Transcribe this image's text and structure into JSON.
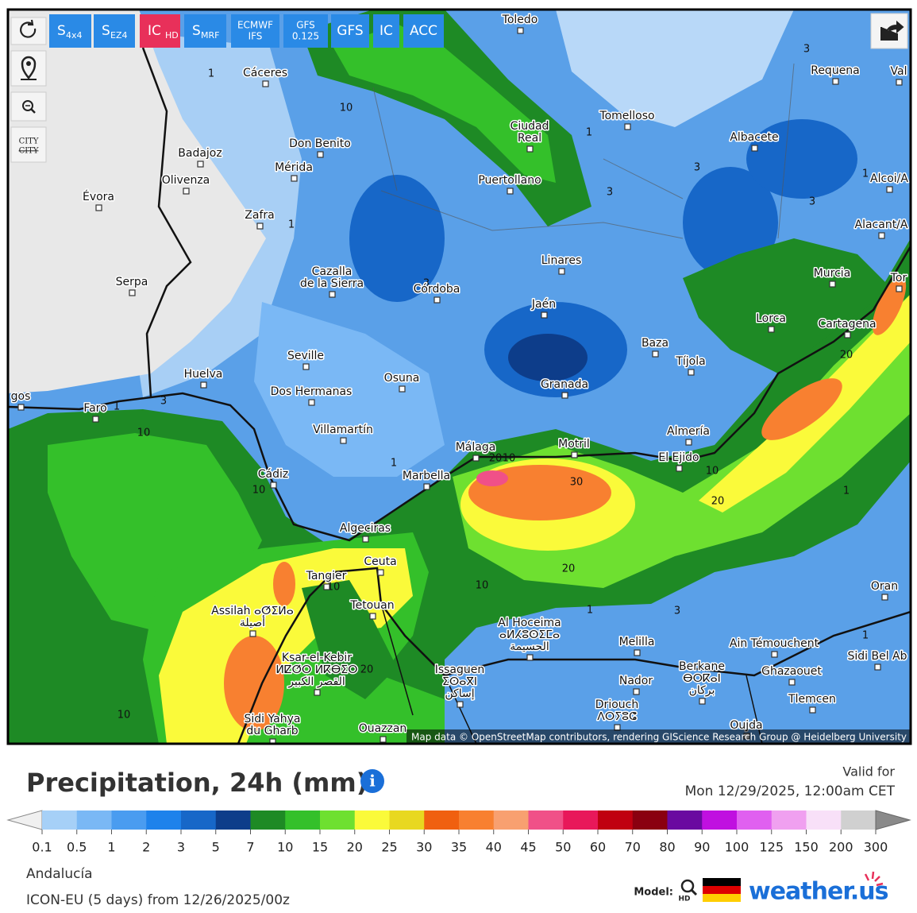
{
  "toolbar": {
    "buttons": [
      {
        "label": "S",
        "sub": "4x4"
      },
      {
        "label": "S",
        "sub": "EZ4"
      },
      {
        "label": "IC",
        "sub": "HD",
        "active": true
      },
      {
        "label": "S",
        "sub": "MRF"
      },
      {
        "label": "ECMWF",
        "line2": "IFS"
      },
      {
        "label": "GFS",
        "line2": "0.125"
      },
      {
        "label": "GFS"
      },
      {
        "label": "IC"
      },
      {
        "label": "ACC"
      }
    ],
    "city_button": "CITY",
    "active_color": "#e8305a",
    "button_color": "#2a8ae6"
  },
  "map": {
    "cities": [
      {
        "lines": [
          "Toledo"
        ]
      },
      {
        "lines": [
          "Cáceres"
        ]
      },
      {
        "lines": [
          "Requena"
        ]
      },
      {
        "lines": [
          "Val"
        ]
      },
      {
        "lines": [
          "Tomelloso"
        ]
      },
      {
        "lines": [
          "Ciudad",
          "Real"
        ]
      },
      {
        "lines": [
          "Albacete"
        ]
      },
      {
        "lines": [
          "Don Benito"
        ]
      },
      {
        "lines": [
          "Mérida"
        ]
      },
      {
        "lines": [
          "Badajoz"
        ]
      },
      {
        "lines": [
          "Olivenza"
        ]
      },
      {
        "lines": [
          "Évora"
        ]
      },
      {
        "lines": [
          "Zafra"
        ]
      },
      {
        "lines": [
          "Puertollano"
        ]
      },
      {
        "lines": [
          "Alcoi/A"
        ]
      },
      {
        "lines": [
          "Alacant/A"
        ]
      },
      {
        "lines": [
          "Serpa"
        ]
      },
      {
        "lines": [
          "Cazalla",
          "de la Sierra"
        ]
      },
      {
        "lines": [
          "Córdoba"
        ]
      },
      {
        "lines": [
          "Linares"
        ]
      },
      {
        "lines": [
          "Murcia"
        ]
      },
      {
        "lines": [
          "Tor"
        ]
      },
      {
        "lines": [
          "Jaén"
        ]
      },
      {
        "lines": [
          "Lorca"
        ]
      },
      {
        "lines": [
          "Cartagena"
        ]
      },
      {
        "lines": [
          "Baza"
        ]
      },
      {
        "lines": [
          "Tíjola"
        ]
      },
      {
        "lines": [
          "Seville"
        ]
      },
      {
        "lines": [
          "Huelva"
        ]
      },
      {
        "lines": [
          "Osuna"
        ]
      },
      {
        "lines": [
          "Dos Hermanas"
        ]
      },
      {
        "lines": [
          "Granada"
        ]
      },
      {
        "lines": [
          "gos"
        ]
      },
      {
        "lines": [
          "Faro"
        ]
      },
      {
        "lines": [
          "Villamartín"
        ]
      },
      {
        "lines": [
          "Almería"
        ]
      },
      {
        "lines": [
          "Málaga"
        ]
      },
      {
        "lines": [
          "Motril"
        ]
      },
      {
        "lines": [
          "El Ejido"
        ]
      },
      {
        "lines": [
          "Cádiz"
        ]
      },
      {
        "lines": [
          "Marbella"
        ]
      },
      {
        "lines": [
          "Algeciras"
        ]
      },
      {
        "lines": [
          "Ceuta"
        ]
      },
      {
        "lines": [
          "Tangier"
        ]
      },
      {
        "lines": [
          "Assilah ⴰⵚⵉⵍⴰ",
          "أصيلة"
        ]
      },
      {
        "lines": [
          "Oran"
        ]
      },
      {
        "lines": [
          "Tetouan"
        ]
      },
      {
        "lines": [
          "Al Hoceima",
          "ⴰⵍⵃⵓⵙⵉⵎⴰ",
          "الحسيمة"
        ]
      },
      {
        "lines": [
          "Melilla"
        ]
      },
      {
        "lines": [
          "Ain Témouchent"
        ]
      },
      {
        "lines": [
          "Sidi Bel Ab"
        ]
      },
      {
        "lines": [
          "Ksar-el-Kebir",
          "ⵍⵇⵚⵔ ⵍⴽⴱⵉⵔ",
          "القصر الكبير"
        ]
      },
      {
        "lines": [
          "Issaguen",
          "ⵉⵙⴰⴳⵏ",
          "إساكن"
        ]
      },
      {
        "lines": [
          "Berkane",
          "ⴱⵔⴽⴰⵏ",
          "بركان"
        ]
      },
      {
        "lines": [
          "Ghazaouet"
        ]
      },
      {
        "lines": [
          "Nador"
        ]
      },
      {
        "lines": [
          "Tlemcen"
        ]
      },
      {
        "lines": [
          "Driouch",
          "ⴷⵔⵢⵓⵛ"
        ]
      },
      {
        "lines": [
          "Sidi Yahya",
          "du Gharb"
        ]
      },
      {
        "lines": [
          "Ouazzan"
        ]
      },
      {
        "lines": [
          "Oujda"
        ]
      }
    ],
    "contour_labels": [
      1,
      10,
      1,
      3,
      3,
      1,
      3,
      3,
      1,
      3,
      20,
      3,
      1,
      10,
      20,
      10,
      30,
      10,
      20,
      1,
      10,
      1,
      20,
      10,
      1,
      3,
      1,
      10,
      20,
      10
    ],
    "attribution": "Map data © OpenStreetMap contributors, rendering GIScience Research Group @ Heidelberg University"
  },
  "info": {
    "title": "Precipitation, 24h (mm)",
    "valid_label": "Valid for",
    "valid_time": "Mon 12/29/2025, 12:00am CET",
    "legend": {
      "labels": [
        0.1,
        0.5,
        1,
        2,
        3,
        5,
        7,
        10,
        15,
        20,
        25,
        30,
        35,
        40,
        45,
        50,
        60,
        70,
        80,
        90,
        100,
        125,
        150,
        200,
        300
      ],
      "colors": [
        "#a6d0f7",
        "#7ab8f5",
        "#4a9cf0",
        "#1e82eb",
        "#1767c8",
        "#0d3d8a",
        "#1e8a25",
        "#34c02a",
        "#6ee030",
        "#fafa3a",
        "#e8d820",
        "#f06010",
        "#f88030",
        "#f8a070",
        "#f05088",
        "#e8185a",
        "#c00010",
        "#8a0010",
        "#6a0aa0",
        "#c010e0",
        "#e060f0",
        "#f0a0f0",
        "#f8e0f8",
        "#d0d0d0"
      ],
      "under_color": "#f0f0f0",
      "over_color": "#8a8a8a"
    },
    "region": "Andalucía",
    "run": "ICON-EU (5 days) from 12/26/2025/00z",
    "model_label": "Model:",
    "model_badge": "HD",
    "brand": "weather.us"
  }
}
